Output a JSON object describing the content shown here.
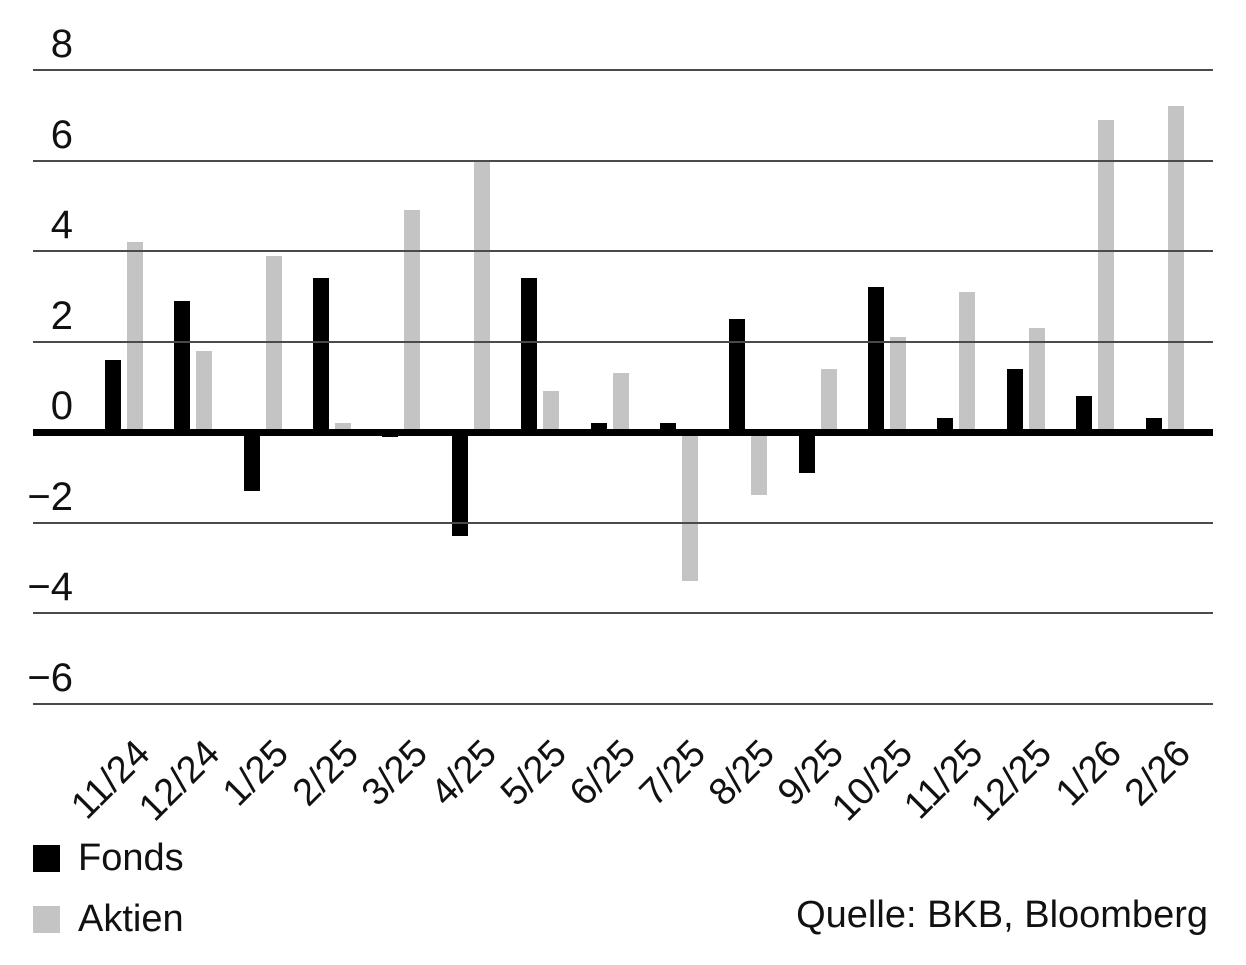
{
  "chart_data": {
    "type": "bar",
    "title": "",
    "xlabel": "",
    "ylabel": "",
    "categories": [
      "11/24",
      "12/24",
      "1/25",
      "2/25",
      "3/25",
      "4/25",
      "5/25",
      "6/25",
      "7/25",
      "8/25",
      "9/25",
      "10/25",
      "11/25",
      "12/25",
      "1/26",
      "2/26"
    ],
    "series": [
      {
        "name": "Fonds",
        "color": "#000000",
        "values": [
          1.6,
          2.9,
          -1.3,
          3.4,
          -0.1,
          -2.3,
          3.4,
          0.2,
          0.2,
          2.5,
          -0.9,
          3.2,
          0.3,
          1.4,
          0.8,
          0.3
        ]
      },
      {
        "name": "Aktien",
        "color": "#c3c4c3",
        "values": [
          4.2,
          1.8,
          3.9,
          0.2,
          4.9,
          6.0,
          0.9,
          1.3,
          -3.3,
          -1.4,
          1.4,
          2.1,
          3.1,
          2.3,
          6.9,
          7.2
        ]
      }
    ],
    "yticks": [
      8,
      6,
      4,
      2,
      0,
      -2,
      -4,
      -6
    ],
    "ylim": [
      -6,
      8
    ],
    "grid": true,
    "legend_position": "bottom-left"
  },
  "legend": {
    "fonds_label": "Fonds",
    "aktien_label": "Aktien"
  },
  "source": {
    "label": "Quelle: BKB, Bloomberg"
  },
  "colors": {
    "fonds": "#000000",
    "aktien": "#c3c4c3",
    "gridline": "#4a4a4a",
    "zero_axis": "#000000",
    "text": "#111111",
    "background": "#ffffff"
  }
}
